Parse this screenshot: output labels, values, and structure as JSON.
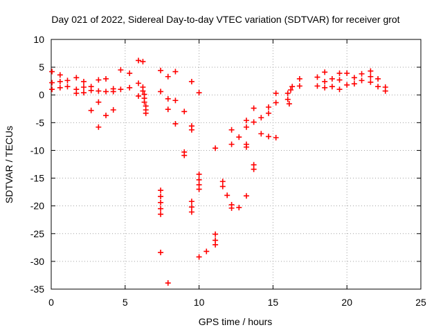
{
  "chart_data": {
    "type": "scatter",
    "title": "Day 021 of 2022, Sidereal Day-to-day VTEC variation (SDTVAR) for receiver grot",
    "xlabel": "GPS time / hours",
    "ylabel": "SDTVAR / TECUs",
    "xlim": [
      0,
      25
    ],
    "ylim": [
      -35,
      10
    ],
    "xticks": [
      "0",
      "5",
      "10",
      "15",
      "20",
      "25"
    ],
    "yticks": [
      "10",
      "5",
      "0",
      "-5",
      "-10",
      "-15",
      "-20",
      "-25",
      "-30",
      "-35"
    ],
    "grid": true,
    "marker": "+",
    "color": "#ff0000",
    "series": [
      {
        "name": "SDTVAR",
        "points": [
          [
            0.05,
            4.2
          ],
          [
            0.05,
            2.2
          ],
          [
            0.05,
            1.0
          ],
          [
            0.6,
            3.6
          ],
          [
            0.6,
            2.4
          ],
          [
            0.6,
            1.3
          ],
          [
            1.1,
            2.6
          ],
          [
            1.1,
            1.5
          ],
          [
            1.7,
            3.1
          ],
          [
            1.7,
            1.0
          ],
          [
            1.7,
            0.3
          ],
          [
            2.2,
            2.4
          ],
          [
            2.2,
            1.4
          ],
          [
            2.2,
            0.4
          ],
          [
            2.7,
            1.5
          ],
          [
            2.7,
            0.8
          ],
          [
            2.7,
            -2.8
          ],
          [
            3.2,
            2.7
          ],
          [
            3.2,
            0.7
          ],
          [
            3.2,
            -1.3
          ],
          [
            3.2,
            -5.8
          ],
          [
            3.7,
            2.9
          ],
          [
            3.7,
            0.6
          ],
          [
            3.7,
            -3.7
          ],
          [
            4.2,
            1.1
          ],
          [
            4.2,
            0.6
          ],
          [
            4.2,
            -2.7
          ],
          [
            4.7,
            4.5
          ],
          [
            4.7,
            1.0
          ],
          [
            5.3,
            3.9
          ],
          [
            5.3,
            1.3
          ],
          [
            5.9,
            6.2
          ],
          [
            5.9,
            2.1
          ],
          [
            5.9,
            -0.2
          ],
          [
            6.2,
            6.0
          ],
          [
            6.2,
            1.4
          ],
          [
            6.2,
            0.7
          ],
          [
            6.3,
            0.1
          ],
          [
            6.3,
            -0.6
          ],
          [
            6.3,
            -1.3
          ],
          [
            6.4,
            -2.0
          ],
          [
            6.4,
            -2.7
          ],
          [
            6.4,
            -3.3
          ],
          [
            7.4,
            4.4
          ],
          [
            7.4,
            0.6
          ],
          [
            7.4,
            -17.2
          ],
          [
            7.4,
            -18.3
          ],
          [
            7.4,
            -19.4
          ],
          [
            7.4,
            -20.5
          ],
          [
            7.4,
            -21.5
          ],
          [
            7.4,
            -28.4
          ],
          [
            7.9,
            3.3
          ],
          [
            7.9,
            -0.7
          ],
          [
            7.9,
            -2.6
          ],
          [
            7.9,
            -33.9
          ],
          [
            8.4,
            4.2
          ],
          [
            8.4,
            -1.0
          ],
          [
            8.4,
            -5.2
          ],
          [
            9.0,
            -3.0
          ],
          [
            9.0,
            -10.3
          ],
          [
            9.0,
            -10.9
          ],
          [
            9.5,
            2.4
          ],
          [
            9.5,
            -5.6
          ],
          [
            9.5,
            -6.3
          ],
          [
            9.5,
            -19.2
          ],
          [
            9.5,
            -20.2
          ],
          [
            9.5,
            -21.1
          ],
          [
            10.0,
            0.4
          ],
          [
            10.0,
            -14.3
          ],
          [
            10.0,
            -15.3
          ],
          [
            10.0,
            -16.2
          ],
          [
            10.0,
            -17.0
          ],
          [
            10.0,
            -29.2
          ],
          [
            10.5,
            -28.2
          ],
          [
            11.1,
            -9.6
          ],
          [
            11.1,
            -25.1
          ],
          [
            11.1,
            -26.2
          ],
          [
            11.1,
            -27.0
          ],
          [
            11.6,
            -15.6
          ],
          [
            11.6,
            -16.5
          ],
          [
            11.9,
            -18.1
          ],
          [
            12.2,
            -6.3
          ],
          [
            12.2,
            -8.9
          ],
          [
            12.2,
            -19.8
          ],
          [
            12.2,
            -20.4
          ],
          [
            12.7,
            -7.6
          ],
          [
            12.7,
            -20.3
          ],
          [
            13.2,
            -4.6
          ],
          [
            13.2,
            -5.8
          ],
          [
            13.2,
            -8.9
          ],
          [
            13.2,
            -9.4
          ],
          [
            13.2,
            -18.2
          ],
          [
            13.7,
            -2.4
          ],
          [
            13.7,
            -4.9
          ],
          [
            13.7,
            -12.6
          ],
          [
            13.7,
            -13.4
          ],
          [
            14.2,
            -4.1
          ],
          [
            14.2,
            -7.0
          ],
          [
            14.7,
            -2.2
          ],
          [
            14.7,
            -3.3
          ],
          [
            14.7,
            -7.5
          ],
          [
            15.2,
            0.3
          ],
          [
            15.2,
            -1.4
          ],
          [
            15.2,
            -7.7
          ],
          [
            16.0,
            0.3
          ],
          [
            16.0,
            -0.8
          ],
          [
            16.1,
            -1.6
          ],
          [
            16.2,
            0.9
          ],
          [
            16.3,
            1.5
          ],
          [
            16.8,
            2.9
          ],
          [
            16.8,
            1.6
          ],
          [
            18.0,
            3.2
          ],
          [
            18.0,
            1.6
          ],
          [
            18.5,
            4.1
          ],
          [
            18.5,
            2.4
          ],
          [
            18.5,
            1.3
          ],
          [
            19.0,
            2.9
          ],
          [
            19.0,
            1.5
          ],
          [
            19.5,
            3.9
          ],
          [
            19.5,
            2.7
          ],
          [
            19.5,
            1.0
          ],
          [
            20.0,
            3.9
          ],
          [
            20.0,
            1.8
          ],
          [
            20.5,
            3.1
          ],
          [
            20.5,
            2.0
          ],
          [
            21.0,
            3.8
          ],
          [
            21.0,
            2.6
          ],
          [
            21.6,
            4.3
          ],
          [
            21.6,
            3.3
          ],
          [
            21.6,
            2.3
          ],
          [
            22.1,
            2.9
          ],
          [
            22.1,
            1.5
          ],
          [
            22.6,
            1.4
          ],
          [
            22.6,
            0.7
          ]
        ]
      }
    ]
  }
}
